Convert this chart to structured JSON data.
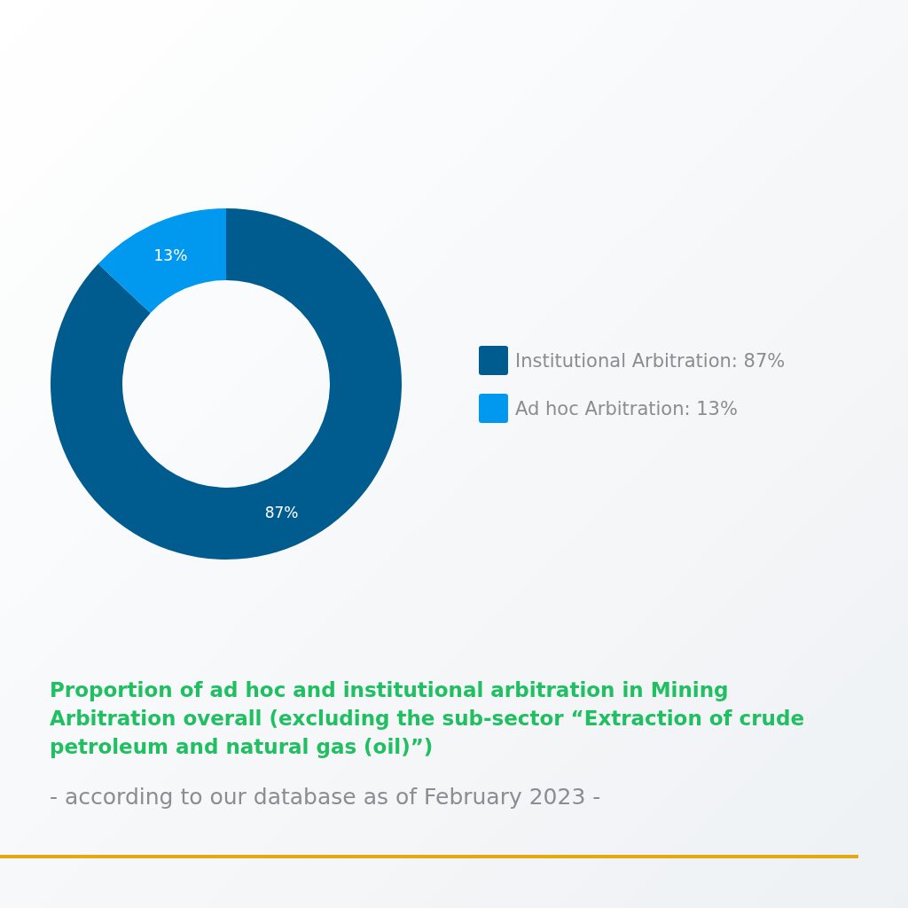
{
  "chart_data": {
    "type": "donut",
    "title": "Proportion of ad hoc and institutional arbitration in Mining Arbitration overall (excluding the sub-sector “Extraction of crude petroleum and natural gas (oil)”)",
    "subtitle": "- according to our database as of February 2023 -",
    "categories": [
      "Institutional Arbitration: 87%",
      "Ad hoc Arbitration: 13%"
    ],
    "values": [
      87,
      13
    ],
    "value_labels": [
      "87%",
      "13%"
    ],
    "colors": [
      "#005b8e",
      "#0099ef"
    ],
    "legend": "right"
  }
}
